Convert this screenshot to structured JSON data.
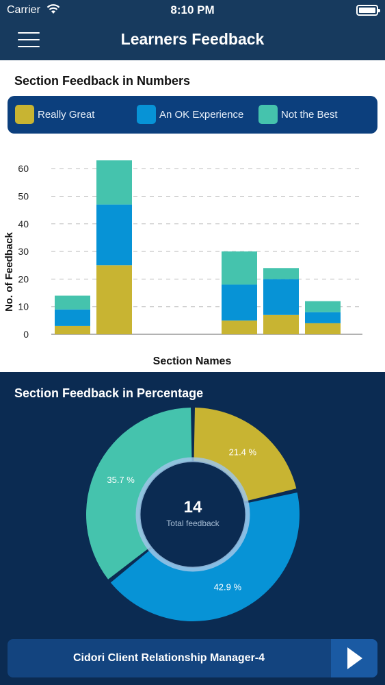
{
  "status_bar": {
    "carrier": "Carrier",
    "time": "8:10 PM"
  },
  "header": {
    "title": "Learners Feedback"
  },
  "section1": {
    "title": "Section Feedback in Numbers"
  },
  "legend": [
    {
      "label": "Really Great",
      "color": "#c8b432"
    },
    {
      "label": "An OK Experience",
      "color": "#0793d6"
    },
    {
      "label": "Not the Best",
      "color": "#45c3ad"
    }
  ],
  "chart_data": {
    "type": "bar",
    "stacked": true,
    "categories": [
      "",
      "",
      "",
      "",
      "",
      "",
      ""
    ],
    "series": [
      {
        "name": "Really Great",
        "color": "#c8b432",
        "values": [
          3,
          25,
          0,
          0,
          5,
          7,
          4
        ]
      },
      {
        "name": "An OK Experience",
        "color": "#0793d6",
        "values": [
          6,
          22,
          0,
          0,
          13,
          13,
          4
        ]
      },
      {
        "name": "Not the Best",
        "color": "#45c3ad",
        "values": [
          5,
          16,
          0,
          0,
          12,
          4,
          4
        ]
      }
    ],
    "xlabel": "Section Names",
    "ylabel": "No. of Feedback",
    "ylim": [
      0,
      60
    ],
    "yticks": [
      "0",
      "10",
      "20",
      "30",
      "40",
      "50",
      "60"
    ],
    "grid": true
  },
  "section2": {
    "title": "Section Feedback in Percentage",
    "total_value": "14",
    "total_label": "Total feedback"
  },
  "donut_data": {
    "type": "pie",
    "slices": [
      {
        "label": "Really Great",
        "percent": 21.4,
        "text": "21.4 %",
        "color": "#c8b432"
      },
      {
        "label": "An OK Experience",
        "percent": 42.9,
        "text": "42.9 %",
        "color": "#0793d6"
      },
      {
        "label": "Not the Best",
        "percent": 35.7,
        "text": "35.7 %",
        "color": "#45c3ad"
      }
    ]
  },
  "bottom_bar": {
    "label": "Cidori Client Relationship Manager-4",
    "play_icon": "play-icon"
  }
}
